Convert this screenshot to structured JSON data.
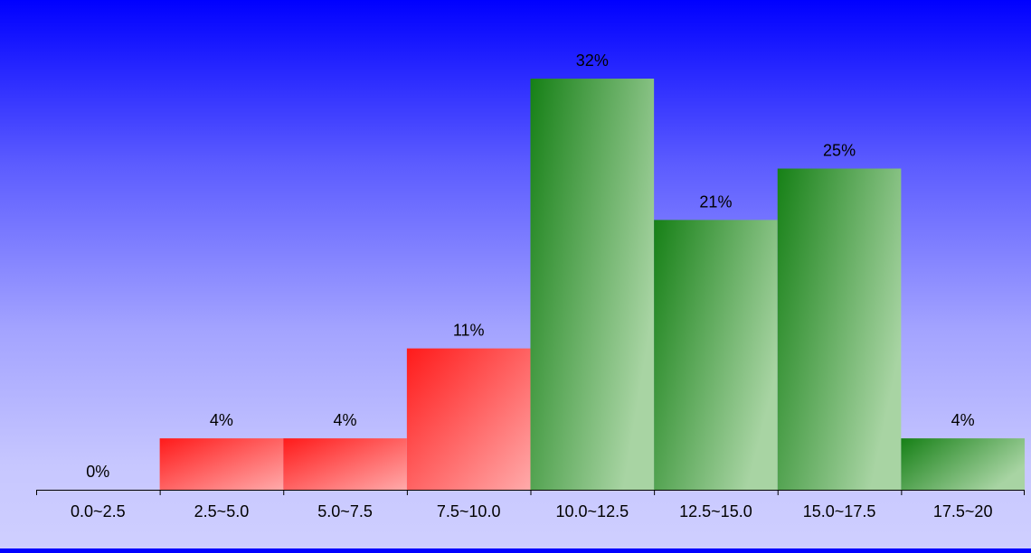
{
  "chart_data": {
    "type": "bar",
    "categories": [
      "0.0~2.5",
      "2.5~5.0",
      "5.0~7.5",
      "7.5~10.0",
      "10.0~12.5",
      "12.5~15.0",
      "15.0~17.5",
      "17.5~20"
    ],
    "values": [
      0,
      4,
      4,
      11,
      32,
      21,
      25,
      4
    ],
    "value_labels": [
      "0%",
      "4%",
      "4%",
      "11%",
      "32%",
      "21%",
      "25%",
      "4%"
    ],
    "units": "%",
    "ylim": [
      0,
      32
    ],
    "grid": false,
    "legend": "none",
    "colors": {
      "low_bar": "#ff1a1a",
      "high_bar": "#168016",
      "low_bar_light": "#ffaaaa",
      "high_bar_light": "#a8d4a3"
    },
    "color_groups": [
      "red",
      "red",
      "red",
      "red",
      "green",
      "green",
      "green",
      "green"
    ]
  }
}
